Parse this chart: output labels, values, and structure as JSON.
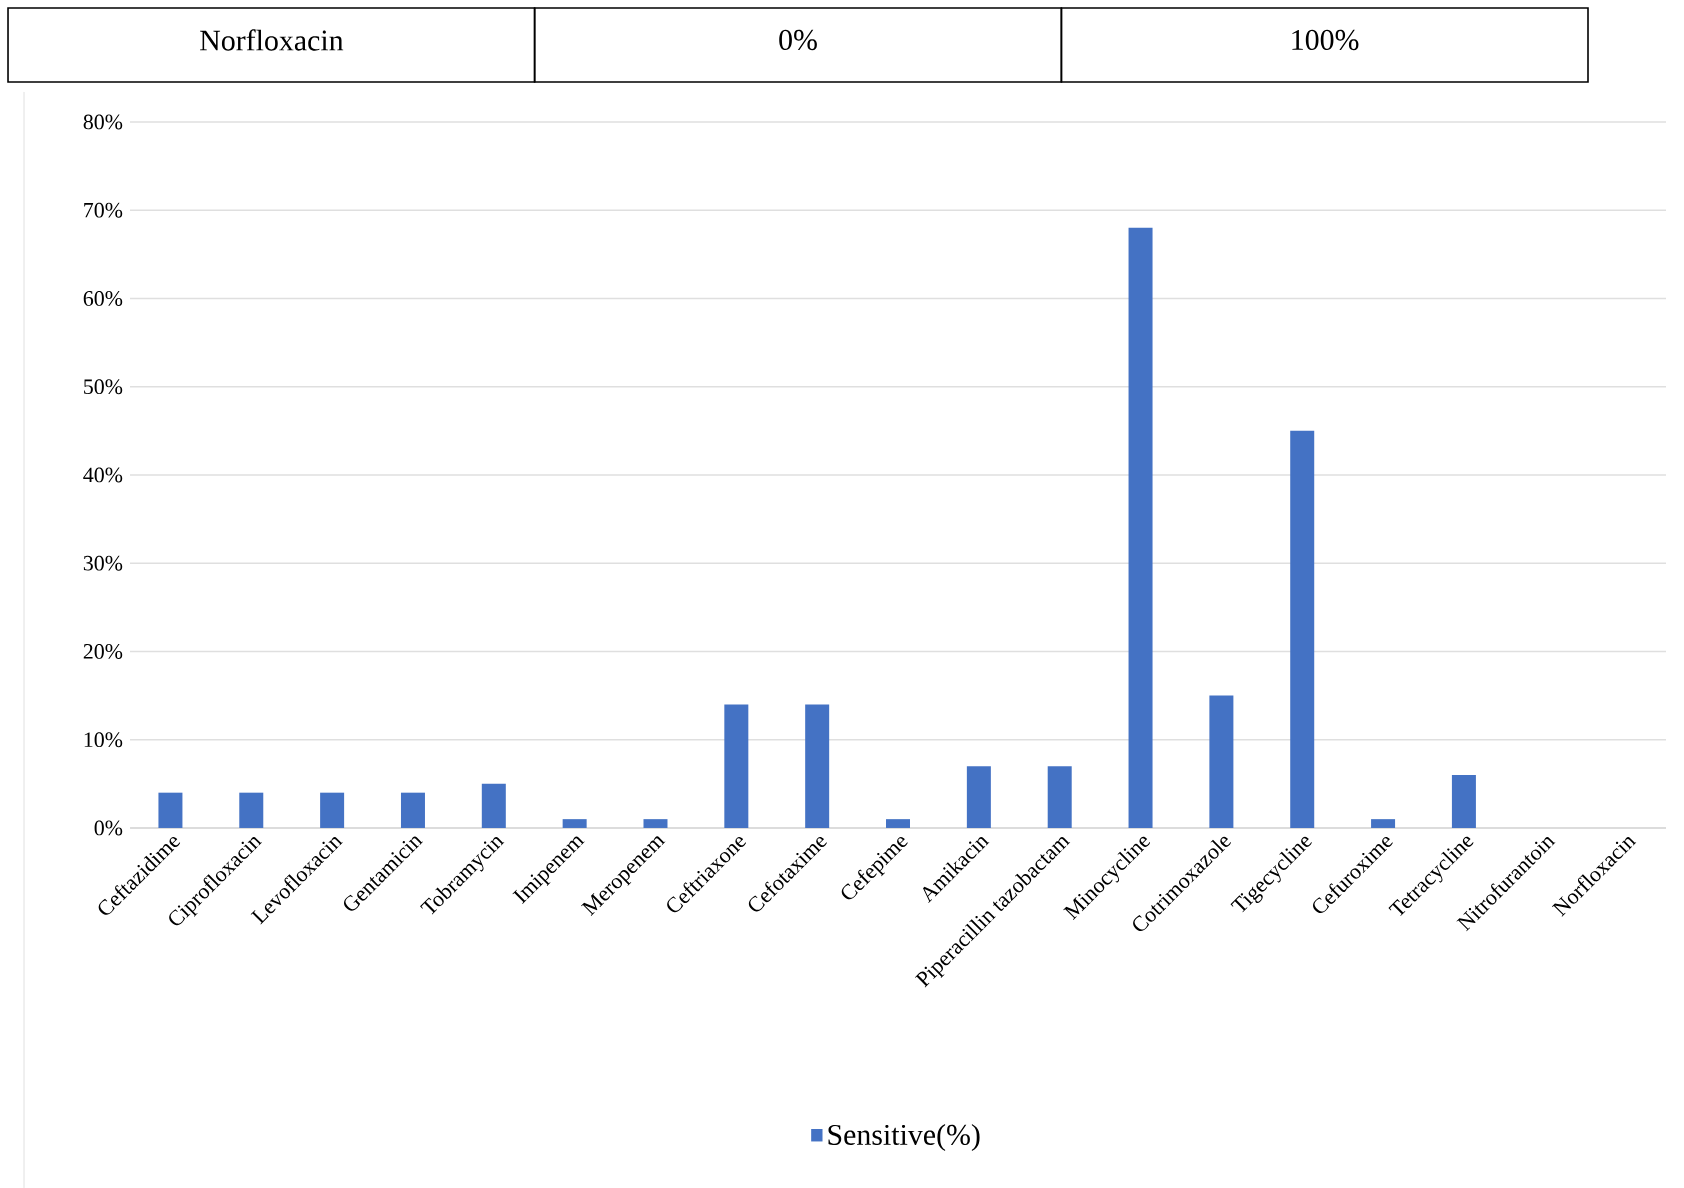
{
  "chart_data": {
    "type": "bar",
    "categories": [
      "Ceftazidime",
      "Ciprofloxacin",
      "Levofloxacin",
      "Gentamicin",
      "Tobramycin",
      "Imipenem",
      "Meropenem",
      "Ceftriaxone",
      "Cefotaxime",
      "Cefepime",
      "Amikacin",
      "Piperacillin tazobactam",
      "Minocycline",
      "Cotrimoxazole",
      "Tigecycline",
      "Cefuroxime",
      "Tetracycline",
      "Nitrofurantoin",
      "Norfloxacin"
    ],
    "series": [
      {
        "name": "Sensitive(%)",
        "color": "#4472c4",
        "values": [
          4,
          4,
          4,
          4,
          5,
          1,
          1,
          14,
          14,
          1,
          7,
          7,
          68,
          15,
          45,
          1,
          6,
          0,
          0
        ]
      }
    ],
    "ylim": [
      0,
      80
    ],
    "yticks": [
      {
        "value": 0,
        "label": "0%"
      },
      {
        "value": 10,
        "label": "10%"
      },
      {
        "value": 20,
        "label": "20%"
      },
      {
        "value": 30,
        "label": "30%"
      },
      {
        "value": 40,
        "label": "40%"
      },
      {
        "value": 50,
        "label": "50%"
      },
      {
        "value": 60,
        "label": "60%"
      },
      {
        "value": 70,
        "label": "70%"
      },
      {
        "value": 80,
        "label": "80%"
      }
    ],
    "grid": "y",
    "legend": "bottom",
    "annotations": [
      "Norfloxacin",
      "0%",
      "100%"
    ]
  }
}
